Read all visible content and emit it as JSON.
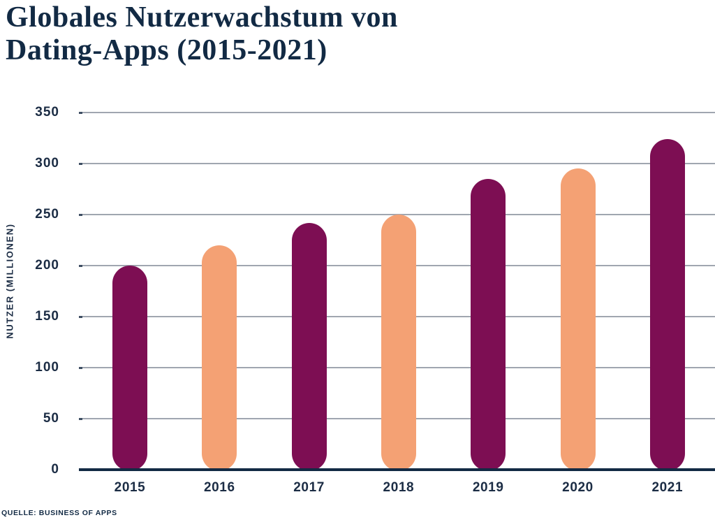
{
  "header": {
    "title_lines": [
      "Globales Nutzerwachstum von",
      "Dating-Apps (2015-2021)"
    ]
  },
  "chart_data": {
    "type": "bar",
    "title": "Globales Nutzerwachstum von Dating-Apps (2015-2021)",
    "categories": [
      "2015",
      "2016",
      "2017",
      "2018",
      "2019",
      "2020",
      "2021"
    ],
    "values": [
      200,
      220,
      242,
      250,
      285,
      295,
      324
    ],
    "xlabel": "",
    "ylabel": "NUTZER (MILLIONEN)",
    "ylim": [
      0,
      350
    ],
    "yticks": [
      0,
      50,
      100,
      150,
      200,
      250,
      300,
      350
    ],
    "grid": true,
    "legend_position": "none",
    "source": "QUELLE: BUSINESS OF APPS",
    "bar_color_pattern": [
      "#7D0E53",
      "#F4A174"
    ],
    "colors": {
      "bar_dark": "#7D0E53",
      "bar_light": "#F4A174",
      "text_navy": "#122A44",
      "gridline": "#A0A6B0",
      "axis_line": "#122A44",
      "background": "#FFFFFF"
    }
  }
}
